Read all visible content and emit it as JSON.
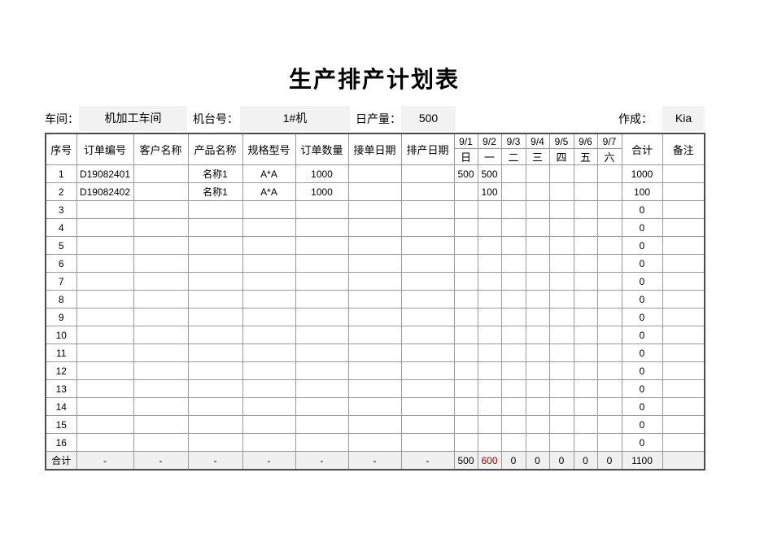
{
  "page": {
    "title": "生产排产计划表"
  },
  "info": {
    "workshop_label": "车间：",
    "workshop_value": "机加工车间",
    "machine_label": "机台号：",
    "machine_value": "1#机",
    "daily_output_label": "日产量：",
    "daily_output_value": "500",
    "author_label": "作成：",
    "author_value": "Kia"
  },
  "table": {
    "columns": [
      "序号",
      "订单编号",
      "客户名称",
      "产品名称",
      "规格型号",
      "订单数量",
      "接单日期",
      "排产日期"
    ],
    "dates": [
      {
        "date": "9/1",
        "weekday": "日"
      },
      {
        "date": "9/2",
        "weekday": "一"
      },
      {
        "date": "9/3",
        "weekday": "二"
      },
      {
        "date": "9/4",
        "weekday": "三"
      },
      {
        "date": "9/5",
        "weekday": "四"
      },
      {
        "date": "9/6",
        "weekday": "五"
      },
      {
        "date": "9/7",
        "weekday": "六"
      }
    ],
    "total_label": "合计",
    "remark_label": "备注",
    "rows": [
      {
        "no": "1",
        "order_no": "D19082401",
        "customer": "",
        "product": "名称1",
        "spec": "A*A",
        "qty": "1000",
        "recv_date": "",
        "sched_date": "",
        "days": [
          "500",
          "500",
          "",
          "",
          "",
          "",
          ""
        ],
        "total": "1000",
        "remark": ""
      },
      {
        "no": "2",
        "order_no": "D19082402",
        "customer": "",
        "product": "名称1",
        "spec": "A*A",
        "qty": "1000",
        "recv_date": "",
        "sched_date": "",
        "days": [
          "",
          "100",
          "",
          "",
          "",
          "",
          ""
        ],
        "total": "100",
        "remark": ""
      },
      {
        "no": "3",
        "order_no": "",
        "customer": "",
        "product": "",
        "spec": "",
        "qty": "",
        "recv_date": "",
        "sched_date": "",
        "days": [
          "",
          "",
          "",
          "",
          "",
          "",
          ""
        ],
        "total": "0",
        "remark": ""
      },
      {
        "no": "4",
        "order_no": "",
        "customer": "",
        "product": "",
        "spec": "",
        "qty": "",
        "recv_date": "",
        "sched_date": "",
        "days": [
          "",
          "",
          "",
          "",
          "",
          "",
          ""
        ],
        "total": "0",
        "remark": ""
      },
      {
        "no": "5",
        "order_no": "",
        "customer": "",
        "product": "",
        "spec": "",
        "qty": "",
        "recv_date": "",
        "sched_date": "",
        "days": [
          "",
          "",
          "",
          "",
          "",
          "",
          ""
        ],
        "total": "0",
        "remark": ""
      },
      {
        "no": "6",
        "order_no": "",
        "customer": "",
        "product": "",
        "spec": "",
        "qty": "",
        "recv_date": "",
        "sched_date": "",
        "days": [
          "",
          "",
          "",
          "",
          "",
          "",
          ""
        ],
        "total": "0",
        "remark": ""
      },
      {
        "no": "7",
        "order_no": "",
        "customer": "",
        "product": "",
        "spec": "",
        "qty": "",
        "recv_date": "",
        "sched_date": "",
        "days": [
          "",
          "",
          "",
          "",
          "",
          "",
          ""
        ],
        "total": "0",
        "remark": ""
      },
      {
        "no": "8",
        "order_no": "",
        "customer": "",
        "product": "",
        "spec": "",
        "qty": "",
        "recv_date": "",
        "sched_date": "",
        "days": [
          "",
          "",
          "",
          "",
          "",
          "",
          ""
        ],
        "total": "0",
        "remark": ""
      },
      {
        "no": "9",
        "order_no": "",
        "customer": "",
        "product": "",
        "spec": "",
        "qty": "",
        "recv_date": "",
        "sched_date": "",
        "days": [
          "",
          "",
          "",
          "",
          "",
          "",
          ""
        ],
        "total": "0",
        "remark": ""
      },
      {
        "no": "10",
        "order_no": "",
        "customer": "",
        "product": "",
        "spec": "",
        "qty": "",
        "recv_date": "",
        "sched_date": "",
        "days": [
          "",
          "",
          "",
          "",
          "",
          "",
          ""
        ],
        "total": "0",
        "remark": ""
      },
      {
        "no": "11",
        "order_no": "",
        "customer": "",
        "product": "",
        "spec": "",
        "qty": "",
        "recv_date": "",
        "sched_date": "",
        "days": [
          "",
          "",
          "",
          "",
          "",
          "",
          ""
        ],
        "total": "0",
        "remark": ""
      },
      {
        "no": "12",
        "order_no": "",
        "customer": "",
        "product": "",
        "spec": "",
        "qty": "",
        "recv_date": "",
        "sched_date": "",
        "days": [
          "",
          "",
          "",
          "",
          "",
          "",
          ""
        ],
        "total": "0",
        "remark": ""
      },
      {
        "no": "13",
        "order_no": "",
        "customer": "",
        "product": "",
        "spec": "",
        "qty": "",
        "recv_date": "",
        "sched_date": "",
        "days": [
          "",
          "",
          "",
          "",
          "",
          "",
          ""
        ],
        "total": "0",
        "remark": ""
      },
      {
        "no": "14",
        "order_no": "",
        "customer": "",
        "product": "",
        "spec": "",
        "qty": "",
        "recv_date": "",
        "sched_date": "",
        "days": [
          "",
          "",
          "",
          "",
          "",
          "",
          ""
        ],
        "total": "0",
        "remark": ""
      },
      {
        "no": "15",
        "order_no": "",
        "customer": "",
        "product": "",
        "spec": "",
        "qty": "",
        "recv_date": "",
        "sched_date": "",
        "days": [
          "",
          "",
          "",
          "",
          "",
          "",
          ""
        ],
        "total": "0",
        "remark": ""
      },
      {
        "no": "16",
        "order_no": "",
        "customer": "",
        "product": "",
        "spec": "",
        "qty": "",
        "recv_date": "",
        "sched_date": "",
        "days": [
          "",
          "",
          "",
          "",
          "",
          "",
          ""
        ],
        "total": "0",
        "remark": ""
      }
    ],
    "footer": {
      "label": "合计",
      "dashes": [
        "-",
        "-",
        "-",
        "-",
        "-",
        "-",
        "-"
      ],
      "days": [
        "500",
        "600",
        "0",
        "0",
        "0",
        "0",
        "0"
      ],
      "highlight_index": 1,
      "total": "1100",
      "remark": ""
    }
  },
  "colors": {
    "field_bg": "#f2f2f2",
    "footer_bg": "#f0f0f0",
    "highlight_bg": "#ffc7ce",
    "highlight_text": "#9c0006",
    "grid_line": "#9a9a9a",
    "outer_border": "#4d4d4d"
  }
}
